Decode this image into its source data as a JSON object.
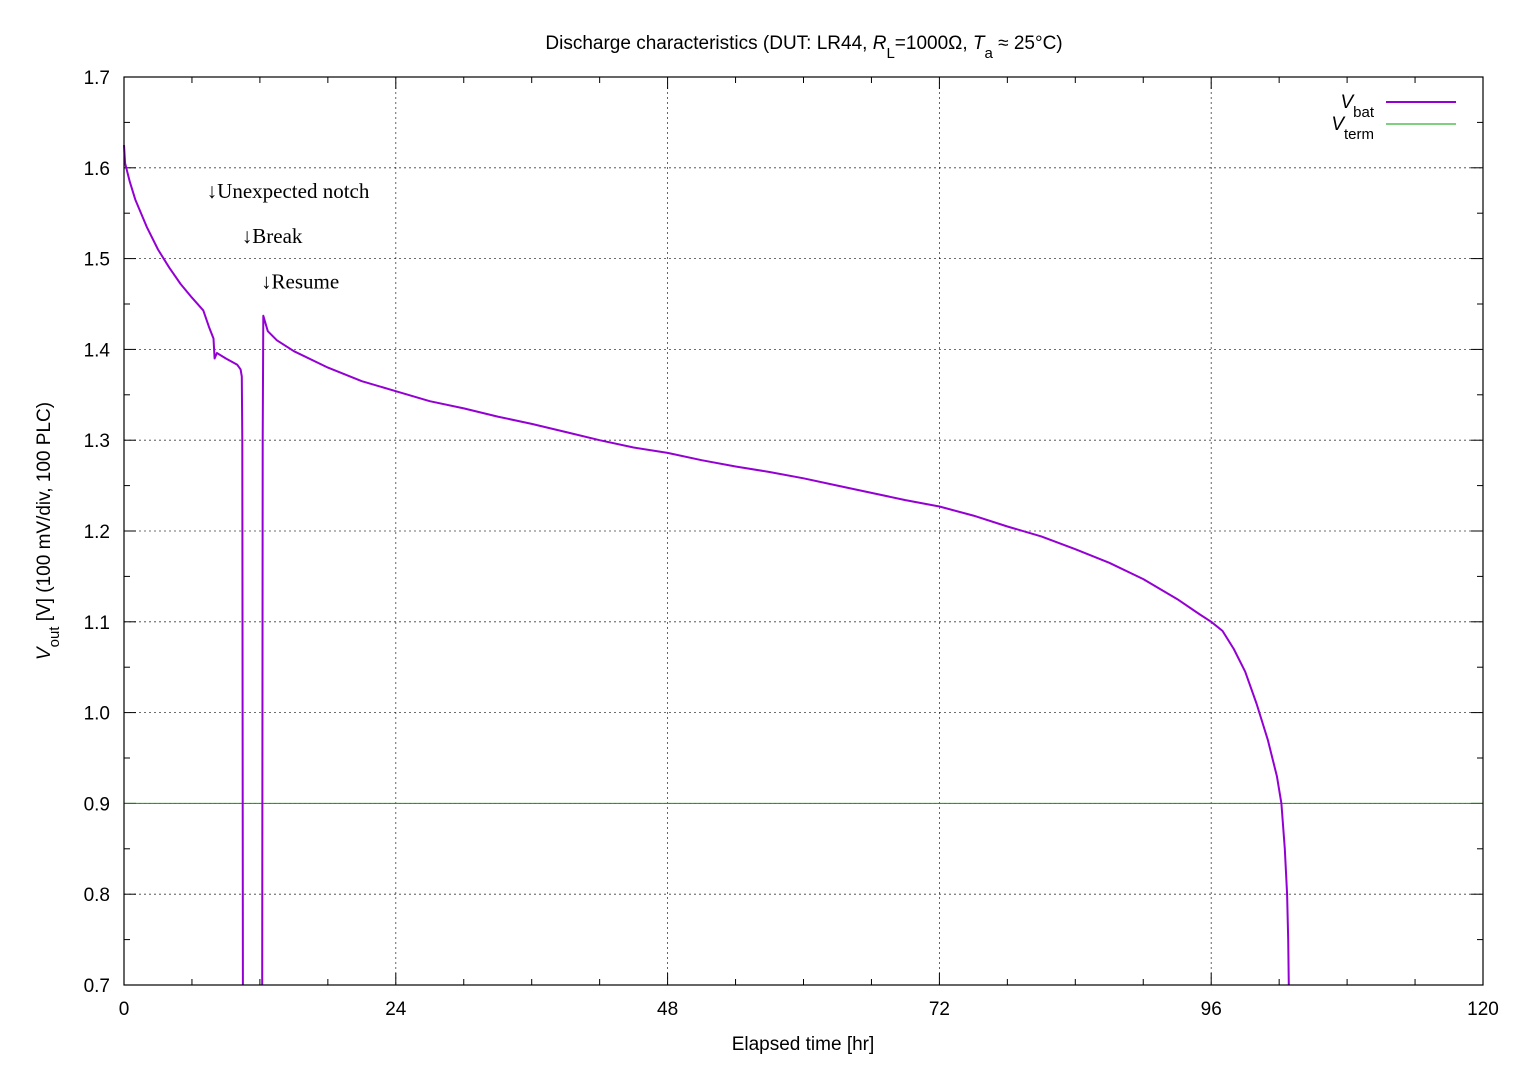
{
  "chart_data": {
    "type": "line",
    "title": {
      "prefix": "Discharge characteristics (DUT: LR44, ",
      "r": "R",
      "r_sub": "L",
      "r_rest": "=1000Ω, ",
      "t": "T",
      "t_sub": "a",
      "t_rest": " ≈ 25°C)"
    },
    "xlabel": "Elapsed time [hr]",
    "ylabel": {
      "v": "V",
      "sub": "out",
      "rest": " [V] (100 mV/div, 100 PLC)"
    },
    "xlim": [
      0,
      120
    ],
    "ylim": [
      0.7,
      1.7
    ],
    "x_ticks": [
      0,
      24,
      48,
      72,
      96,
      120
    ],
    "x_tick_labels": [
      "0",
      "24",
      "48",
      "72",
      "96",
      "120"
    ],
    "x_minor_step": 6,
    "y_ticks": [
      0.7,
      0.8,
      0.9,
      1.0,
      1.1,
      1.2,
      1.3,
      1.4,
      1.5,
      1.6,
      1.7
    ],
    "y_tick_labels": [
      "0.7",
      "0.8",
      "0.9",
      "1.0",
      "1.1",
      "1.2",
      "1.3",
      "1.4",
      "1.5",
      "1.6",
      "1.7"
    ],
    "y_minor_step": 0.05,
    "grid": true,
    "legend_position": "top-right",
    "series": [
      {
        "name_main": "V",
        "name_sub": "bat",
        "color": "#9400d3",
        "segments": [
          [
            [
              0,
              1.625
            ],
            [
              0.1,
              1.605
            ],
            [
              0.5,
              1.585
            ],
            [
              1,
              1.565
            ],
            [
              2,
              1.535
            ],
            [
              3,
              1.51
            ],
            [
              4,
              1.49
            ],
            [
              5,
              1.472
            ],
            [
              6,
              1.457
            ],
            [
              7,
              1.443
            ],
            [
              7.5,
              1.425
            ],
            [
              7.9,
              1.412
            ],
            [
              8.0,
              1.39
            ],
            [
              8.2,
              1.396
            ],
            [
              9,
              1.39
            ],
            [
              10,
              1.383
            ],
            [
              10.3,
              1.378
            ],
            [
              10.4,
              1.37
            ],
            [
              10.45,
              1.3
            ],
            [
              10.5,
              0.7
            ]
          ],
          [
            [
              12.2,
              0.7
            ],
            [
              12.25,
              1.3
            ],
            [
              12.3,
              1.437
            ],
            [
              12.7,
              1.42
            ],
            [
              13.5,
              1.41
            ],
            [
              15,
              1.398
            ],
            [
              18,
              1.38
            ],
            [
              21,
              1.365
            ],
            [
              24,
              1.354
            ],
            [
              27,
              1.343
            ],
            [
              30,
              1.335
            ],
            [
              33,
              1.326
            ],
            [
              36,
              1.318
            ],
            [
              39,
              1.309
            ],
            [
              42,
              1.3
            ],
            [
              45,
              1.292
            ],
            [
              48,
              1.286
            ],
            [
              51,
              1.278
            ],
            [
              54,
              1.271
            ],
            [
              57,
              1.265
            ],
            [
              60,
              1.258
            ],
            [
              63,
              1.25
            ],
            [
              66,
              1.242
            ],
            [
              69,
              1.234
            ],
            [
              72,
              1.227
            ],
            [
              75,
              1.217
            ],
            [
              78,
              1.205
            ],
            [
              81,
              1.194
            ],
            [
              84,
              1.18
            ],
            [
              87,
              1.165
            ],
            [
              90,
              1.147
            ],
            [
              93,
              1.125
            ],
            [
              95,
              1.108
            ],
            [
              96,
              1.1
            ],
            [
              97,
              1.09
            ],
            [
              98,
              1.07
            ],
            [
              99,
              1.045
            ],
            [
              100,
              1.01
            ],
            [
              101,
              0.97
            ],
            [
              101.8,
              0.93
            ],
            [
              102.2,
              0.9
            ],
            [
              102.5,
              0.85
            ],
            [
              102.7,
              0.8
            ],
            [
              102.8,
              0.75
            ],
            [
              102.85,
              0.7
            ]
          ]
        ]
      },
      {
        "name_main": "V",
        "name_sub": "term",
        "color": "#009e00",
        "segments": [
          [
            [
              0,
              0.9
            ],
            [
              120,
              0.9
            ]
          ]
        ]
      }
    ],
    "annotations": [
      {
        "text": "↓Unexpected notch",
        "x": 7.3,
        "y": 1.567
      },
      {
        "text": "↓Break",
        "x": 10.4,
        "y": 1.517
      },
      {
        "text": "↓Resume",
        "x": 12.1,
        "y": 1.467
      }
    ]
  }
}
